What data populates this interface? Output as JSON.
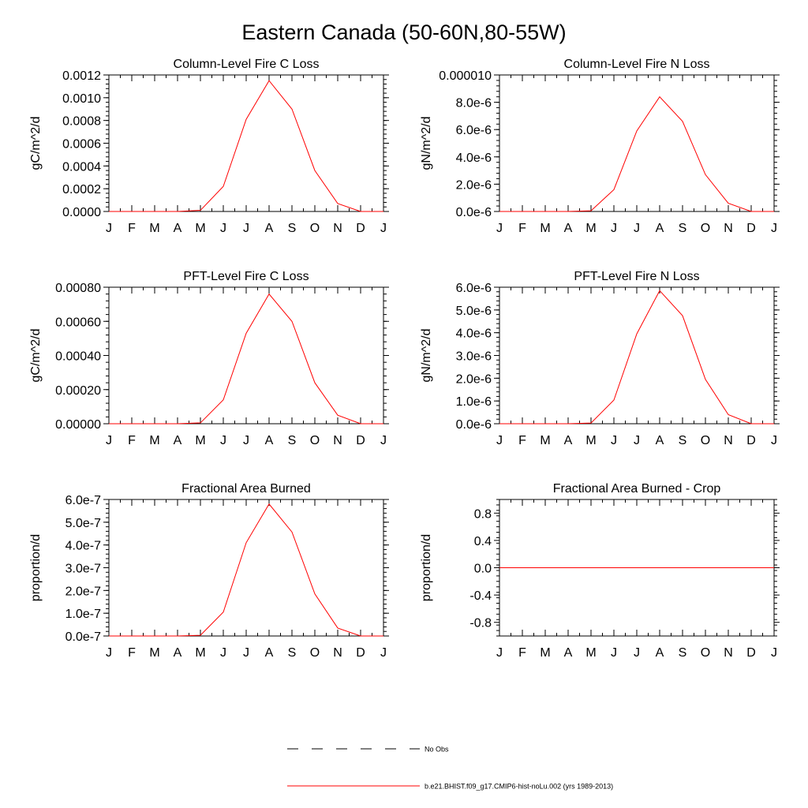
{
  "figure_title": "Eastern Canada (50-60N,80-55W)",
  "legend": {
    "items": [
      {
        "label": "No Obs",
        "style": "dashed",
        "color": "#000000"
      },
      {
        "label": "b.e21.BHIST.f09_g17.CMIP6-hist-noLu.002 (yrs 1989-2013)",
        "style": "solid",
        "color": "#ff0000"
      }
    ]
  },
  "chart_data": [
    {
      "type": "line",
      "title": "Column-Level Fire C Loss",
      "ylabel": "gC/m^2/d",
      "xlabel": "",
      "categories": [
        "J",
        "F",
        "M",
        "A",
        "M",
        "J",
        "J",
        "A",
        "S",
        "O",
        "N",
        "D",
        "J"
      ],
      "ylim": [
        0,
        0.0012
      ],
      "yticks": [
        0,
        0.0002,
        0.0004,
        0.0006,
        0.0008,
        0.001,
        0.0012
      ],
      "ytick_labels": [
        "0.0000",
        "0.0002",
        "0.0004",
        "0.0006",
        "0.0008",
        "0.0010",
        "0.0012"
      ],
      "series": [
        {
          "color": "#ff0000",
          "values": [
            0,
            0,
            0,
            0,
            1e-05,
            0.00022,
            0.00081,
            0.00115,
            0.0009,
            0.00036,
            7e-05,
            0,
            0
          ]
        }
      ],
      "grid": false
    },
    {
      "type": "line",
      "title": "Column-Level Fire N Loss",
      "ylabel": "gN/m^2/d",
      "xlabel": "",
      "categories": [
        "J",
        "F",
        "M",
        "A",
        "M",
        "J",
        "J",
        "A",
        "S",
        "O",
        "N",
        "D",
        "J"
      ],
      "ylim": [
        0,
        1e-05
      ],
      "yticks": [
        0,
        2e-06,
        4e-06,
        6e-06,
        8e-06,
        1e-05
      ],
      "ytick_labels": [
        "0.0e-6",
        "2.0e-6",
        "4.0e-6",
        "6.0e-6",
        "8.0e-6",
        "0.000010"
      ],
      "series": [
        {
          "color": "#ff0000",
          "values": [
            0,
            0,
            0,
            0,
            5e-08,
            1.6e-06,
            5.9e-06,
            8.4e-06,
            6.6e-06,
            2.7e-06,
            6e-07,
            0,
            0
          ]
        }
      ],
      "grid": false
    },
    {
      "type": "line",
      "title": "PFT-Level Fire C Loss",
      "ylabel": "gC/m^2/d",
      "xlabel": "",
      "categories": [
        "J",
        "F",
        "M",
        "A",
        "M",
        "J",
        "J",
        "A",
        "S",
        "O",
        "N",
        "D",
        "J"
      ],
      "ylim": [
        0,
        0.0008
      ],
      "yticks": [
        0,
        0.0002,
        0.0004,
        0.0006,
        0.0008
      ],
      "ytick_labels": [
        "0.00000",
        "0.00020",
        "0.00040",
        "0.00060",
        "0.00080"
      ],
      "series": [
        {
          "color": "#ff0000",
          "values": [
            0,
            0,
            0,
            0,
            5e-06,
            0.00014,
            0.00053,
            0.00076,
            0.0006,
            0.00024,
            5e-05,
            0,
            0
          ]
        }
      ],
      "grid": false
    },
    {
      "type": "line",
      "title": "PFT-Level Fire N Loss",
      "ylabel": "gN/m^2/d",
      "xlabel": "",
      "categories": [
        "J",
        "F",
        "M",
        "A",
        "M",
        "J",
        "J",
        "A",
        "S",
        "O",
        "N",
        "D",
        "J"
      ],
      "ylim": [
        0,
        6e-06
      ],
      "yticks": [
        0,
        1e-06,
        2e-06,
        3e-06,
        4e-06,
        5e-06,
        6e-06
      ],
      "ytick_labels": [
        "0.0e-6",
        "1.0e-6",
        "2.0e-6",
        "3.0e-6",
        "4.0e-6",
        "5.0e-6",
        "6.0e-6"
      ],
      "series": [
        {
          "color": "#ff0000",
          "values": [
            0,
            0,
            0,
            0,
            3e-08,
            1.04e-06,
            3.95e-06,
            5.85e-06,
            4.75e-06,
            1.95e-06,
            4e-07,
            0,
            0
          ]
        }
      ],
      "grid": false
    },
    {
      "type": "line",
      "title": "Fractional Area Burned",
      "ylabel": "proportion/d",
      "xlabel": "",
      "categories": [
        "J",
        "F",
        "M",
        "A",
        "M",
        "J",
        "J",
        "A",
        "S",
        "O",
        "N",
        "D",
        "J"
      ],
      "ylim": [
        0,
        6e-07
      ],
      "yticks": [
        0,
        1e-07,
        2e-07,
        3e-07,
        4e-07,
        5e-07,
        6e-07
      ],
      "ytick_labels": [
        "0.0e-7",
        "1.0e-7",
        "2.0e-7",
        "3.0e-7",
        "4.0e-7",
        "5.0e-7",
        "6.0e-7"
      ],
      "series": [
        {
          "color": "#ff0000",
          "values": [
            0,
            0,
            0,
            0,
            3e-09,
            1.05e-07,
            4.1e-07,
            5.8e-07,
            4.57e-07,
            1.85e-07,
            3.5e-08,
            0,
            0
          ]
        }
      ],
      "grid": false
    },
    {
      "type": "line",
      "title": "Fractional Area Burned - Crop",
      "ylabel": "proportion/d",
      "xlabel": "",
      "categories": [
        "J",
        "F",
        "M",
        "A",
        "M",
        "J",
        "J",
        "A",
        "S",
        "O",
        "N",
        "D",
        "J"
      ],
      "ylim": [
        -1,
        1
      ],
      "yticks": [
        -0.8,
        -0.4,
        0,
        0.4,
        0.8
      ],
      "ytick_labels": [
        "-0.8",
        "-0.4",
        "0.0",
        "0.4",
        "0.8"
      ],
      "series": [
        {
          "color": "#ff0000",
          "values": [
            0,
            0,
            0,
            0,
            0,
            0,
            0,
            0,
            0,
            0,
            0,
            0,
            0
          ]
        }
      ],
      "grid": false
    }
  ]
}
